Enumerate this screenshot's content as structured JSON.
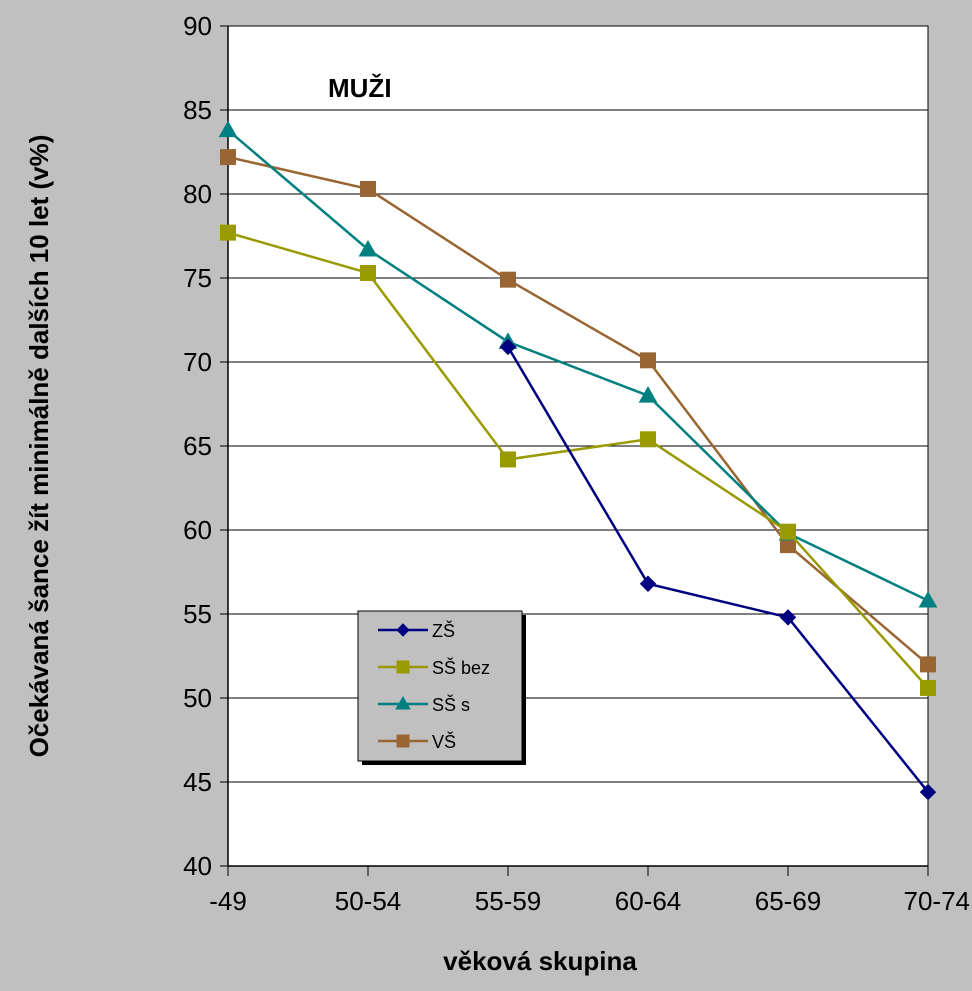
{
  "chart_data": {
    "type": "line",
    "annotation": "MUŽI",
    "xlabel": "věková skupina",
    "ylabel": "Očekávaná šance žít minimálně dalších 10 let (v%)",
    "categories": [
      "-49",
      "50-54",
      "55-59",
      "60-64",
      "65-69",
      "70-74"
    ],
    "ylim": [
      40,
      90
    ],
    "yticks": [
      40,
      45,
      50,
      55,
      60,
      65,
      70,
      75,
      80,
      85,
      90
    ],
    "grid": true,
    "legend_position": "bottom-left",
    "series": [
      {
        "name": "ZŠ",
        "color": "#000080",
        "marker": "diamond",
        "values": [
          null,
          null,
          70.9,
          56.8,
          54.8,
          44.4
        ]
      },
      {
        "name": "SŠ bez",
        "color": "#999900",
        "marker": "square",
        "values": [
          77.7,
          75.3,
          64.2,
          65.4,
          59.9,
          50.6
        ]
      },
      {
        "name": "SŠ s",
        "color": "#008080",
        "marker": "triangle",
        "values": [
          83.8,
          76.7,
          71.2,
          68.0,
          59.8,
          55.8
        ]
      },
      {
        "name": "VŠ",
        "color": "#996633",
        "marker": "square",
        "values": [
          82.2,
          80.3,
          74.9,
          70.1,
          59.1,
          52.0
        ]
      }
    ]
  }
}
